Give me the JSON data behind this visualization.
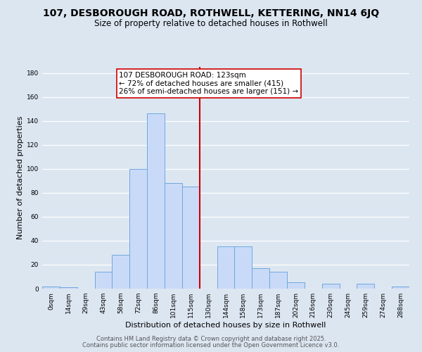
{
  "title": "107, DESBOROUGH ROAD, ROTHWELL, KETTERING, NN14 6JQ",
  "subtitle": "Size of property relative to detached houses in Rothwell",
  "xlabel": "Distribution of detached houses by size in Rothwell",
  "ylabel": "Number of detached properties",
  "bin_labels": [
    "0sqm",
    "14sqm",
    "29sqm",
    "43sqm",
    "58sqm",
    "72sqm",
    "86sqm",
    "101sqm",
    "115sqm",
    "130sqm",
    "144sqm",
    "158sqm",
    "173sqm",
    "187sqm",
    "202sqm",
    "216sqm",
    "230sqm",
    "245sqm",
    "259sqm",
    "274sqm",
    "288sqm"
  ],
  "bar_heights": [
    2,
    1,
    0,
    14,
    28,
    100,
    146,
    88,
    85,
    0,
    35,
    35,
    17,
    14,
    5,
    0,
    4,
    0,
    4,
    0,
    2
  ],
  "bar_color": "#c9daf8",
  "bar_edge_color": "#6fa8dc",
  "vline_x": 8.5,
  "vline_color": "#cc0000",
  "annotation_box_text": "107 DESBOROUGH ROAD: 123sqm\n← 72% of detached houses are smaller (415)\n26% of semi-detached houses are larger (151) →",
  "annotation_box_edge_color": "#cc0000",
  "ylim": [
    0,
    185
  ],
  "yticks": [
    0,
    20,
    40,
    60,
    80,
    100,
    120,
    140,
    160,
    180
  ],
  "grid_color": "#d0d8e8",
  "background_color": "#dce6f1",
  "footer_line1": "Contains HM Land Registry data © Crown copyright and database right 2025.",
  "footer_line2": "Contains public sector information licensed under the Open Government Licence v3.0.",
  "title_fontsize": 10,
  "subtitle_fontsize": 8.5,
  "annotation_fontsize": 7.5,
  "label_fontsize": 8,
  "tick_fontsize": 6.5,
  "footer_fontsize": 6
}
